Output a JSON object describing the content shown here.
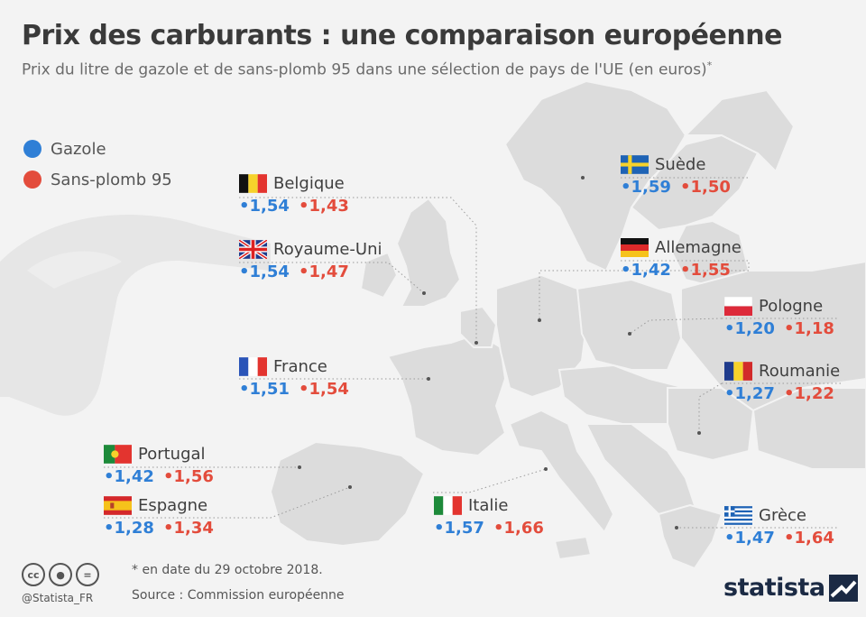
{
  "header": {
    "title": "Prix des carburants : une comparaison européenne",
    "subtitle": "Prix du litre de gazole et de sans-plomb 95 dans une sélection de pays de l'UE  (en euros)",
    "subtitle_mark": "*"
  },
  "legend": [
    {
      "label": "Gazole",
      "color": "#2f7fd6"
    },
    {
      "label": "Sans-plomb 95",
      "color": "#e34c3c"
    }
  ],
  "countries": [
    {
      "name": "Belgique",
      "flag": "be",
      "diesel": "•1,54",
      "petrol": "•1,43"
    },
    {
      "name": "Royaume-Uni",
      "flag": "uk",
      "diesel": "•1,54",
      "petrol": "•1,47"
    },
    {
      "name": "France",
      "flag": "fr",
      "diesel": "•1,51",
      "petrol": "•1,54"
    },
    {
      "name": "Portugal",
      "flag": "pt",
      "diesel": "•1,42",
      "petrol": "•1,56"
    },
    {
      "name": "Espagne",
      "flag": "es",
      "diesel": "•1,28",
      "petrol": "•1,34"
    },
    {
      "name": "Italie",
      "flag": "it",
      "diesel": "•1,57",
      "petrol": "•1,66"
    },
    {
      "name": "Suède",
      "flag": "se",
      "diesel": "•1,59",
      "petrol": "•1,50"
    },
    {
      "name": "Allemagne",
      "flag": "de",
      "diesel": "•1,42",
      "petrol": "•1,55"
    },
    {
      "name": "Pologne",
      "flag": "pl",
      "diesel": "•1,20",
      "petrol": "•1,18"
    },
    {
      "name": "Roumanie",
      "flag": "ro",
      "diesel": "•1,27",
      "petrol": "•1,22"
    },
    {
      "name": "Grèce",
      "flag": "gr",
      "diesel": "•1,47",
      "petrol": "•1,64"
    }
  ],
  "footer": {
    "note": "* en date du 29 octobre 2018.",
    "source": "Source : Commission européenne",
    "handle": "@Statista_FR",
    "brand": "statista",
    "license_icons": [
      "cc-icon",
      "by-icon",
      "nd-icon"
    ]
  },
  "colors": {
    "background": "#f3f3f3",
    "land": "#dcdcdc",
    "land_borders": "#f3f3f3",
    "diesel": "#2f7fd6",
    "petrol": "#e34c3c",
    "brand": "#1b2a44"
  }
}
